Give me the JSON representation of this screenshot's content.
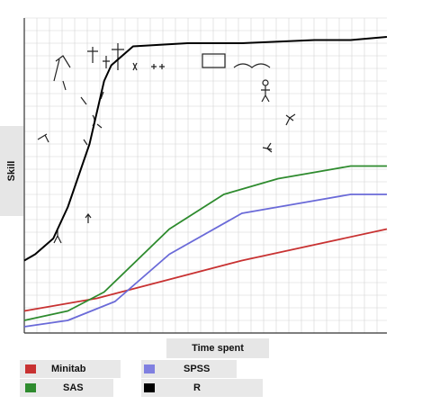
{
  "chart_data": {
    "type": "line",
    "title": "",
    "xlabel": "Time spent",
    "ylabel": "Skill",
    "xlim": [
      0,
      100
    ],
    "ylim": [
      0,
      100
    ],
    "grid": true,
    "legend_position": "bottom-left",
    "series": [
      {
        "name": "Minitab",
        "color": "#c83232",
        "x": [
          0,
          20,
          40,
          60,
          80,
          100
        ],
        "y": [
          7,
          11,
          17,
          23,
          28,
          33
        ]
      },
      {
        "name": "SPSS",
        "color": "#6a6ad8",
        "x": [
          0,
          12,
          25,
          40,
          60,
          80,
          90,
          100
        ],
        "y": [
          2,
          4,
          10,
          25,
          38,
          42,
          44,
          44
        ]
      },
      {
        "name": "SAS",
        "color": "#2e8b2e",
        "x": [
          0,
          12,
          22,
          40,
          55,
          70,
          85,
          90,
          100
        ],
        "y": [
          4,
          7,
          13,
          33,
          44,
          49,
          52,
          53,
          53
        ]
      },
      {
        "name": "R",
        "color": "#000000",
        "x": [
          0,
          3,
          8,
          12,
          18,
          20,
          22,
          24,
          30,
          45,
          60,
          70,
          80,
          90,
          100
        ],
        "y": [
          23,
          25,
          30,
          40,
          60,
          70,
          80,
          85,
          91,
          92,
          92,
          92.5,
          93,
          93,
          94
        ]
      }
    ]
  }
}
